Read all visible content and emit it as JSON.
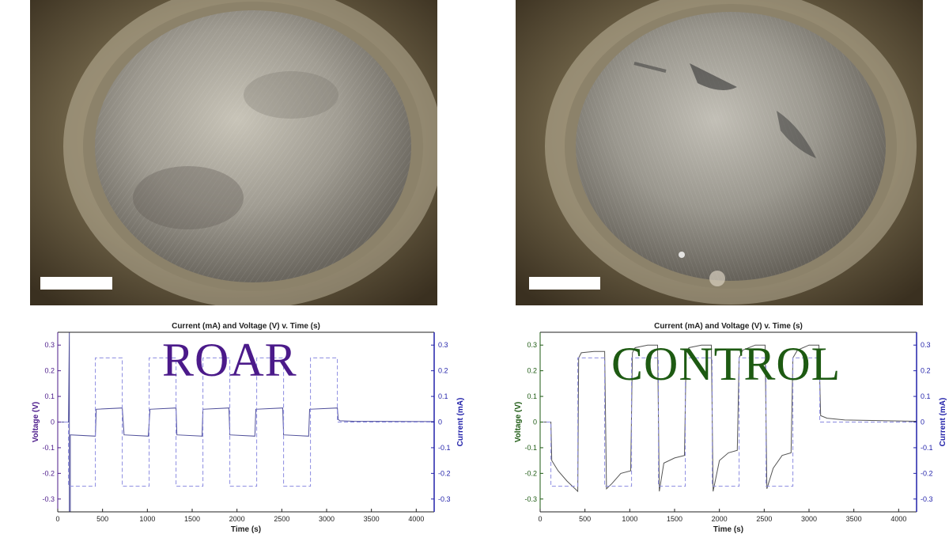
{
  "labels": {
    "left_overlay": "ROAR",
    "right_overlay": "CONTROL"
  },
  "colors": {
    "roar": "#4b1a8a",
    "control": "#1d5a12",
    "voltage_line": "#555555",
    "current_line": "#8a8ae0",
    "right_axis": "#2222aa"
  },
  "chart_data": [
    {
      "type": "line",
      "title": "Current (mA) and Voltage (V) v. Time (s)",
      "xlabel": "Time (s)",
      "ylabel": "Voltage (V)",
      "ylabel_right": "Current (mA)",
      "xlim": [
        0,
        4200
      ],
      "ylim": [
        -0.35,
        0.35
      ],
      "ylim_right": [
        -0.35,
        0.35
      ],
      "xticks": [
        0,
        500,
        1000,
        1500,
        2000,
        2500,
        3000,
        3500,
        4000
      ],
      "yticks": [
        -0.3,
        -0.2,
        -0.1,
        0,
        0.1,
        0.2,
        0.3
      ],
      "series": [
        {
          "axis": "left",
          "style": "solid",
          "x": [
            0,
            120,
            130,
            130,
            140,
            140,
            150,
            420,
            430,
            720,
            740,
            1010,
            1030,
            1320,
            1330,
            1610,
            1620,
            1910,
            1920,
            2200,
            2210,
            2510,
            2520,
            2800,
            2810,
            3120,
            3130,
            3150,
            3300,
            4200
          ],
          "y": [
            0,
            0,
            0.35,
            -0.35,
            -0.35,
            -0.05,
            -0.05,
            -0.055,
            0.05,
            0.055,
            -0.05,
            -0.055,
            0.05,
            0.055,
            -0.05,
            -0.055,
            0.05,
            0.055,
            -0.05,
            -0.055,
            0.05,
            0.055,
            -0.05,
            -0.055,
            0.05,
            0.055,
            0.01,
            0.005,
            0.003,
            0.002
          ]
        },
        {
          "axis": "right",
          "style": "dashed",
          "x": [
            0,
            120,
            120,
            420,
            420,
            720,
            720,
            1020,
            1020,
            1320,
            1320,
            1620,
            1620,
            1920,
            1920,
            2220,
            2220,
            2520,
            2520,
            2820,
            2820,
            3120,
            3120,
            4200
          ],
          "y": [
            0,
            0,
            -0.25,
            -0.25,
            0.25,
            0.25,
            -0.25,
            -0.25,
            0.25,
            0.25,
            -0.25,
            -0.25,
            0.25,
            0.25,
            -0.25,
            -0.25,
            0.25,
            0.25,
            -0.25,
            -0.25,
            0.25,
            0.25,
            0,
            0
          ]
        }
      ]
    },
    {
      "type": "line",
      "title": "Current (mA) and Voltage (V) v. Time (s)",
      "xlabel": "Time (s)",
      "ylabel": "Voltage (V)",
      "ylabel_right": "Current (mA)",
      "xlim": [
        0,
        4200
      ],
      "ylim": [
        -0.35,
        0.35
      ],
      "ylim_right": [
        -0.35,
        0.35
      ],
      "xticks": [
        0,
        500,
        1000,
        1500,
        2000,
        2500,
        3000,
        3500,
        4000
      ],
      "yticks": [
        -0.3,
        -0.2,
        -0.1,
        0,
        0.1,
        0.2,
        0.3
      ],
      "series": [
        {
          "axis": "left",
          "style": "solid",
          "x": [
            0,
            120,
            130,
            200,
            300,
            420,
            430,
            460,
            600,
            720,
            740,
            800,
            900,
            1010,
            1030,
            1060,
            1200,
            1310,
            1330,
            1380,
            1500,
            1610,
            1630,
            1660,
            1800,
            1910,
            1930,
            2000,
            2100,
            2200,
            2220,
            2260,
            2400,
            2510,
            2530,
            2600,
            2700,
            2800,
            2820,
            2870,
            3000,
            3110,
            3130,
            3200,
            3400,
            4200
          ],
          "y": [
            0,
            0,
            -0.15,
            -0.19,
            -0.23,
            -0.27,
            0.25,
            0.27,
            0.275,
            0.275,
            -0.26,
            -0.24,
            -0.2,
            -0.19,
            0.27,
            0.29,
            0.3,
            0.3,
            -0.27,
            -0.16,
            -0.14,
            -0.13,
            0.27,
            0.29,
            0.3,
            0.3,
            -0.27,
            -0.15,
            -0.12,
            -0.11,
            0.25,
            0.28,
            0.3,
            0.3,
            -0.26,
            -0.18,
            -0.13,
            -0.12,
            0.25,
            0.28,
            0.3,
            0.3,
            0.025,
            0.015,
            0.008,
            0.003
          ]
        },
        {
          "axis": "right",
          "style": "dashed",
          "x": [
            0,
            120,
            120,
            420,
            420,
            720,
            720,
            1020,
            1020,
            1320,
            1320,
            1620,
            1620,
            1920,
            1920,
            2220,
            2220,
            2520,
            2520,
            2820,
            2820,
            3120,
            3120,
            4200
          ],
          "y": [
            0,
            0,
            -0.25,
            -0.25,
            0.25,
            0.25,
            -0.25,
            -0.25,
            0.25,
            0.25,
            -0.25,
            -0.25,
            0.25,
            0.25,
            -0.25,
            -0.25,
            0.25,
            0.25,
            -0.25,
            -0.25,
            0.25,
            0.25,
            0,
            0
          ]
        }
      ]
    }
  ]
}
